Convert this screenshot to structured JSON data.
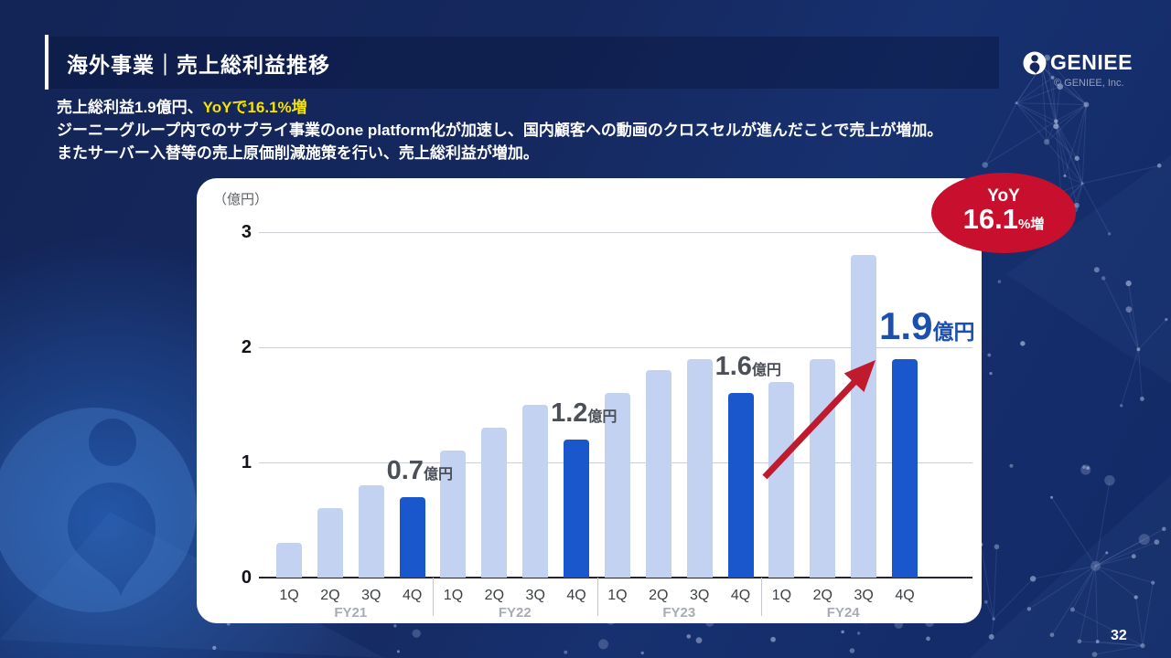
{
  "slide": {
    "title": "海外事業｜売上総利益推移",
    "page_number": "32",
    "logo": {
      "brand": "GENIEE",
      "copyright": "© GENIEE, Inc."
    },
    "highlights": {
      "line1_white": "売上総利益1.9億円、",
      "line1_yellow": "YoYで16.1%増",
      "line2": "ジーニーグループ内でのサプライ事業のone platform化が加速し、国内顧客への動画のクロスセルが進んだことで売上が増加。",
      "line3": "またサーバー入替等の売上原価削減施策を行い、売上総利益が増加。"
    },
    "badge": {
      "top": "YoY",
      "value": "16.1",
      "suffix": "%増"
    }
  },
  "chart_data": {
    "type": "bar",
    "title": "海外事業 売上総利益推移",
    "unit_label": "（億円）",
    "ylim": [
      0,
      3
    ],
    "yticks": [
      "0",
      "1",
      "2",
      "3"
    ],
    "quarters": [
      "1Q",
      "2Q",
      "3Q",
      "4Q"
    ],
    "groups": [
      {
        "fiscal_year": "FY21",
        "values": [
          0.3,
          0.6,
          0.8,
          0.7
        ]
      },
      {
        "fiscal_year": "FY22",
        "values": [
          1.1,
          1.3,
          1.5,
          1.2
        ]
      },
      {
        "fiscal_year": "FY23",
        "values": [
          1.6,
          1.8,
          1.9,
          1.6
        ]
      },
      {
        "fiscal_year": "FY24",
        "values": [
          1.7,
          1.9,
          2.8,
          1.9
        ]
      }
    ],
    "highlighted_quarter_index": 3,
    "annotations": [
      {
        "group": "FY21",
        "num": "0.7",
        "unit": "億円",
        "emphasis": false
      },
      {
        "group": "FY22",
        "num": "1.2",
        "unit": "億円",
        "emphasis": false
      },
      {
        "group": "FY23",
        "num": "1.6",
        "unit": "億円",
        "emphasis": false
      },
      {
        "group": "FY24",
        "num": "1.9",
        "unit": "億円",
        "emphasis": true
      }
    ],
    "legend": "none",
    "grid": true,
    "colors": {
      "bar_light": "#c3d2f0",
      "bar_dark": "#1a56cc",
      "grid": "#ccd0d6",
      "axis": "#23262c",
      "annotation_gray": "#4b4f57",
      "annotation_blue": "#1d4fae",
      "arrow_red": "#bf1a2e",
      "badge_red": "#c8102e",
      "highlight_yellow": "#f4e303"
    }
  }
}
